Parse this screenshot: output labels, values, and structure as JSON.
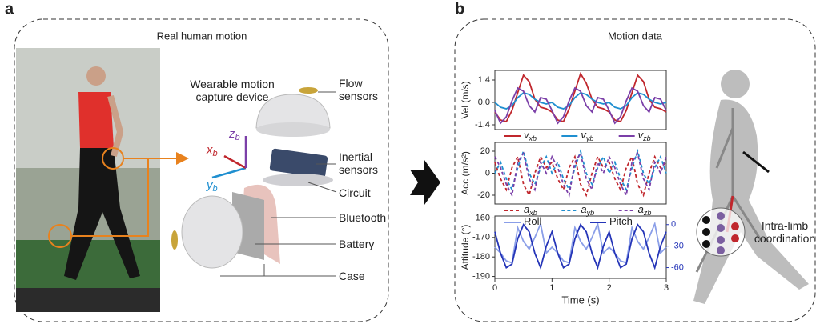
{
  "panel_a": {
    "label": "a",
    "title": "Real human motion",
    "device_title": "Wearable motion capture device",
    "axes": [
      {
        "name": "x",
        "sub": "b"
      },
      {
        "name": "y",
        "sub": "b"
      },
      {
        "name": "z",
        "sub": "b"
      }
    ],
    "parts": [
      "Flow sensors",
      "Inertial sensors",
      "Circuit",
      "Bluetooth",
      "Battery",
      "Case"
    ]
  },
  "panel_b": {
    "label": "b",
    "title": "Motion data",
    "annotation": "Intra-limb coordination"
  },
  "chart_data": [
    {
      "type": "line",
      "y_label": "Vel (m/s)",
      "x": [
        0,
        0.1,
        0.2,
        0.3,
        0.4,
        0.5,
        0.6,
        0.7,
        0.8,
        0.9,
        1,
        1.1,
        1.2,
        1.3,
        1.4,
        1.5,
        1.6,
        1.7,
        1.8,
        1.9,
        2,
        2.1,
        2.2,
        2.3,
        2.4,
        2.5,
        2.6,
        2.7,
        2.8,
        2.9,
        3
      ],
      "xlim": [
        0,
        3
      ],
      "ylim": [
        -1.7,
        2.0
      ],
      "yticks": [
        -1.4,
        {
          "value": 0,
          "label": "0.0"
        },
        1.4
      ],
      "series": [
        {
          "name": "v",
          "sub": "xb",
          "color": "#c0272d",
          "dash": false,
          "values": [
            -0.6,
            -1.1,
            -1.2,
            -0.5,
            0.6,
            1.7,
            1.3,
            0.2,
            -0.3,
            -0.4,
            -0.6,
            -1.1,
            -1.2,
            -0.4,
            0.7,
            1.8,
            1.2,
            0.2,
            -0.3,
            -0.4,
            -0.6,
            -1.1,
            -1.2,
            -0.5,
            0.6,
            1.7,
            1.3,
            0.2,
            -0.3,
            -0.4,
            -0.6
          ]
        },
        {
          "name": "v",
          "sub": "yb",
          "color": "#1f8fd0",
          "dash": false,
          "values": [
            0,
            -0.3,
            -0.4,
            -0.2,
            0.3,
            0.6,
            0.5,
            0.2,
            0,
            -0.1,
            0,
            -0.3,
            -0.4,
            -0.2,
            0.3,
            0.6,
            0.5,
            0.2,
            0,
            -0.1,
            0,
            -0.3,
            -0.4,
            -0.2,
            0.3,
            0.6,
            0.5,
            0.2,
            0,
            -0.1,
            0
          ]
        },
        {
          "name": "v",
          "sub": "zb",
          "color": "#7b3fa8",
          "dash": false,
          "values": [
            -0.5,
            -1.3,
            -0.9,
            0.1,
            0.9,
            0.7,
            -0.2,
            -0.6,
            0.3,
            0.2,
            -0.5,
            -1.3,
            -0.9,
            0.1,
            0.9,
            0.7,
            -0.2,
            -0.6,
            0.3,
            0.2,
            -0.5,
            -1.3,
            -0.9,
            0.1,
            0.9,
            0.7,
            -0.2,
            -0.6,
            0.3,
            0.2,
            -0.5
          ]
        }
      ]
    },
    {
      "type": "line",
      "y_label": "Acc (m/s²)",
      "x": [
        0,
        0.1,
        0.2,
        0.3,
        0.4,
        0.5,
        0.6,
        0.7,
        0.8,
        0.9,
        1,
        1.1,
        1.2,
        1.3,
        1.4,
        1.5,
        1.6,
        1.7,
        1.8,
        1.9,
        2,
        2.1,
        2.2,
        2.3,
        2.4,
        2.5,
        2.6,
        2.7,
        2.8,
        2.9,
        3
      ],
      "xlim": [
        0,
        3
      ],
      "ylim": [
        -28,
        28
      ],
      "yticks": [
        -20,
        0,
        20
      ],
      "series": [
        {
          "name": "a",
          "sub": "xb",
          "color": "#c0272d",
          "dash": true,
          "values": [
            10,
            -5,
            -15,
            5,
            15,
            -10,
            -20,
            0,
            15,
            5,
            10,
            -5,
            -15,
            5,
            15,
            -10,
            -20,
            0,
            15,
            5,
            10,
            -5,
            -15,
            5,
            15,
            -10,
            -20,
            0,
            15,
            5,
            10
          ]
        },
        {
          "name": "a",
          "sub": "yb",
          "color": "#1f8fd0",
          "dash": true,
          "values": [
            0,
            10,
            -5,
            -15,
            5,
            20,
            0,
            -10,
            5,
            15,
            0,
            10,
            -5,
            -15,
            5,
            20,
            0,
            -10,
            5,
            15,
            0,
            10,
            -5,
            -15,
            5,
            20,
            0,
            -10,
            5,
            15,
            0
          ]
        },
        {
          "name": "a",
          "sub": "zb",
          "color": "#7b3fa8",
          "dash": true,
          "values": [
            15,
            5,
            -10,
            -20,
            10,
            18,
            -5,
            -15,
            10,
            0,
            15,
            5,
            -10,
            -20,
            10,
            18,
            -5,
            -15,
            10,
            0,
            15,
            5,
            -10,
            -20,
            10,
            18,
            -5,
            -15,
            10,
            0,
            15
          ]
        }
      ]
    },
    {
      "type": "line",
      "y_label": "Attitude (°)",
      "x_label": "Time (s)",
      "x": [
        0,
        0.1,
        0.2,
        0.3,
        0.4,
        0.5,
        0.6,
        0.7,
        0.8,
        0.9,
        1,
        1.1,
        1.2,
        1.3,
        1.4,
        1.5,
        1.6,
        1.7,
        1.8,
        1.9,
        2,
        2.1,
        2.2,
        2.3,
        2.4,
        2.5,
        2.6,
        2.7,
        2.8,
        2.9,
        3
      ],
      "xlim": [
        0,
        3
      ],
      "xticks": [
        0,
        1,
        2,
        3
      ],
      "ylim": [
        -191,
        -159
      ],
      "yticks": [
        -190,
        -180,
        -170,
        -160
      ],
      "y2lim": [
        -75,
        12
      ],
      "y2ticks": [
        0,
        -30,
        -60
      ],
      "series": [
        {
          "name": "Roll",
          "color": "#8a9ee8",
          "dash": false,
          "values": [
            -175,
            -178,
            -182,
            -183,
            -165,
            -172,
            -176,
            -170,
            -163,
            -178,
            -175,
            -178,
            -182,
            -183,
            -165,
            -172,
            -176,
            -170,
            -163,
            -178,
            -175,
            -178,
            -182,
            -183,
            -165,
            -172,
            -176,
            -170,
            -163,
            -178,
            -175
          ]
        },
        {
          "name": "Pitch",
          "color": "#2535b8",
          "dash": false,
          "axis": "y2",
          "values": [
            -10,
            -40,
            -60,
            -55,
            -20,
            0,
            -10,
            -40,
            -60,
            -30,
            -10,
            -40,
            -60,
            -55,
            -20,
            0,
            -10,
            -40,
            -60,
            -30,
            -10,
            -40,
            -60,
            -55,
            -20,
            0,
            -10,
            -40,
            -60,
            -30,
            -10
          ]
        }
      ]
    }
  ]
}
